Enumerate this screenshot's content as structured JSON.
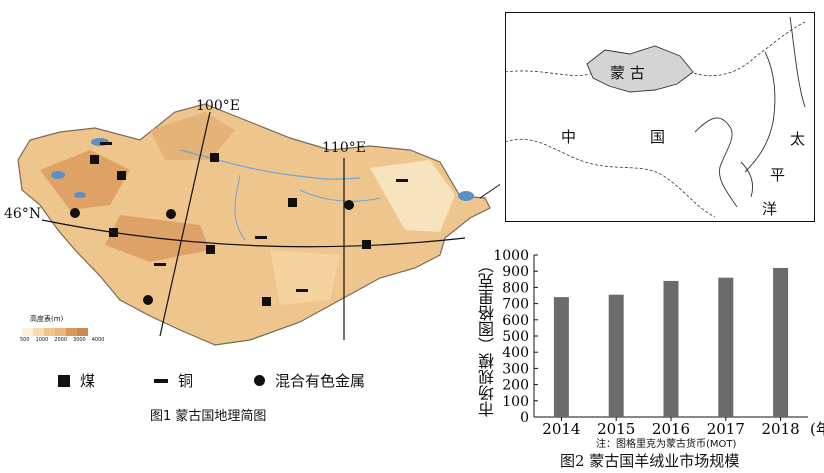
{
  "figure1": {
    "caption": "图1  蒙古国地理简图",
    "lon_label_100": "100°E",
    "lon_label_110": "110°E",
    "lat_label_46": "46°N",
    "elev_legend_title": "高度表(m)",
    "elev_legend_ticks": [
      "500",
      "1000",
      "2000",
      "3000",
      "4000"
    ],
    "legend": [
      {
        "icon": "coal-square-icon",
        "label": "煤"
      },
      {
        "icon": "copper-bar-icon",
        "label": "铜"
      },
      {
        "icon": "metal-dot-icon",
        "label": "混合有色金属"
      }
    ],
    "colors": {
      "land_low": "#f6ddb0",
      "land_mid": "#e9b77a",
      "land_high": "#c98a4e",
      "water": "#6fa6d6",
      "outline": "#555555"
    }
  },
  "inset": {
    "mongolia": "蒙  古",
    "china_1": "中",
    "china_2": "国",
    "pacific_1": "太",
    "pacific_2": "平",
    "pacific_3": "洋",
    "highlight_color": "#d4d4d4"
  },
  "chart_data": {
    "type": "bar",
    "categories": [
      "2014",
      "2015",
      "2016",
      "2017",
      "2018"
    ],
    "values": [
      740,
      755,
      840,
      860,
      920
    ],
    "ylabel": "市场规模（图格里克）",
    "xlabel": "(年)",
    "ylim": [
      0,
      1000
    ],
    "yticks": [
      "0",
      "100",
      "200",
      "300",
      "400",
      "500",
      "600",
      "700",
      "800",
      "900",
      "1000"
    ],
    "note": "注：图格里克为蒙古货币(MOT)",
    "title": "图2  蒙古国羊绒业市场规模",
    "bar_color": "#6b6b6b"
  }
}
